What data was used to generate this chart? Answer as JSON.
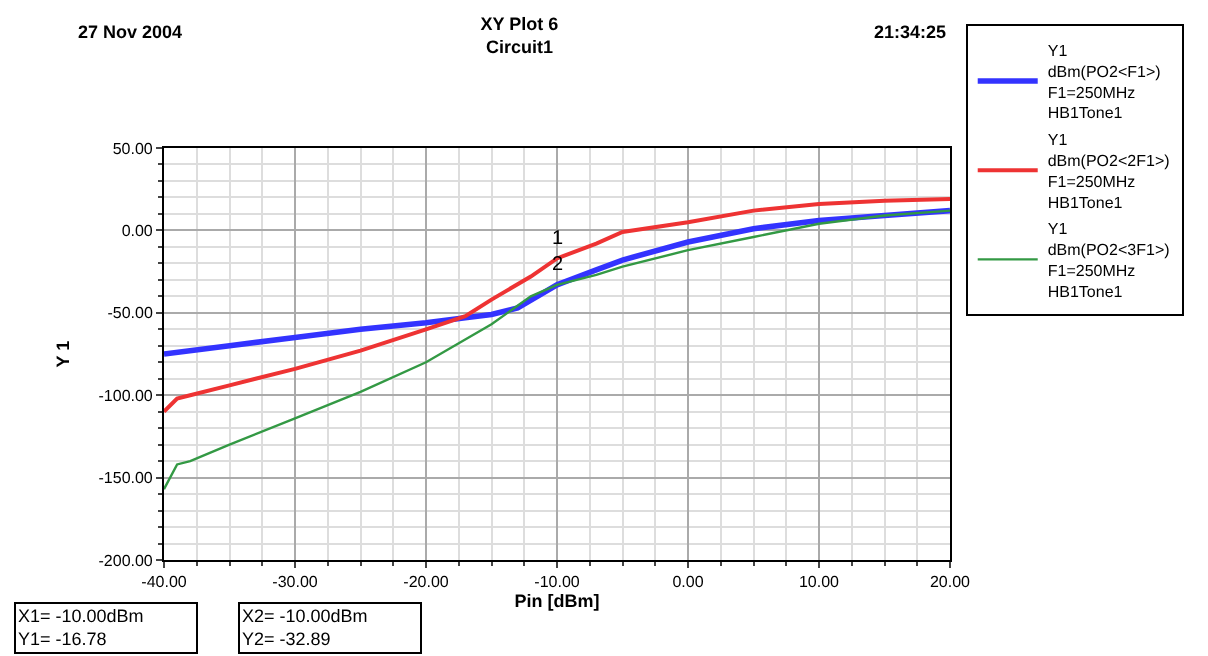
{
  "chart_data": {
    "type": "line",
    "title": "XY Plot 6",
    "subtitle": "Circuit1",
    "xlabel": "Pin [dBm]",
    "ylabel": "Y 1",
    "annotations": [
      "27 Nov 2004",
      "21:34:25",
      {
        "text": "1",
        "x": -10,
        "y": -16.78
      },
      {
        "text": "2",
        "x": -10,
        "y": -32.89
      },
      "X1= -10.00dBm\nY1= -16.78",
      "X2= -10.00dBm\nY2= -32.89"
    ],
    "series": [
      {
        "name": "Y1\ndBm(PO2<F1>)\nF1=250MHz\nHB1Tone1",
        "color": "#3333ff",
        "x": [
          -40,
          -35,
          -30,
          -25,
          -20,
          -17,
          -15,
          -13,
          -10,
          -7,
          -5,
          0,
          5,
          10,
          15,
          20
        ],
        "values": [
          -75,
          -70,
          -65,
          -60,
          -56,
          -53,
          -51,
          -47,
          -33,
          -24,
          -18,
          -7,
          1,
          6,
          9,
          12
        ]
      },
      {
        "name": "Y1\ndBm(PO2<2F1>)\nF1=250MHz\nHB1Tone1",
        "color": "#ee3333",
        "x": [
          -40,
          -39,
          -38,
          -35,
          -30,
          -25,
          -20,
          -17,
          -15,
          -12,
          -10,
          -7,
          -5,
          0,
          5,
          10,
          15,
          20
        ],
        "values": [
          -110,
          -102,
          -100,
          -94,
          -84,
          -73,
          -60,
          -52,
          -42,
          -28,
          -17,
          -8,
          -1,
          5,
          12,
          16,
          18,
          19
        ]
      },
      {
        "name": "Y1\ndBm(PO2<3F1>)\nF1=250MHz\nHB1Tone1",
        "color": "#339944",
        "x": [
          -40,
          -39,
          -38,
          -35,
          -30,
          -25,
          -20,
          -15,
          -12,
          -10,
          -7,
          -5,
          0,
          5,
          10,
          15,
          20
        ],
        "values": [
          -157,
          -142,
          -140,
          -130,
          -114,
          -98,
          -80,
          -57,
          -40,
          -33,
          -27,
          -22,
          -12,
          -4,
          4,
          9,
          12
        ]
      }
    ],
    "xlim": [
      -40,
      20
    ],
    "ylim": [
      -200,
      50
    ],
    "xticks": [
      {
        "value": -40,
        "label": "-40.00"
      },
      {
        "value": -30,
        "label": "-30.00"
      },
      {
        "value": -20,
        "label": "-20.00"
      },
      {
        "value": -10,
        "label": "-10.00"
      },
      {
        "value": 0,
        "label": "0.00"
      },
      {
        "value": 10,
        "label": "10.00"
      },
      {
        "value": 20,
        "label": "20.00"
      }
    ],
    "yticks": [
      {
        "value": -200,
        "label": "-200.00"
      },
      {
        "value": -150,
        "label": "-150.00"
      },
      {
        "value": -100,
        "label": "-100.00"
      },
      {
        "value": -50,
        "label": "-50.00"
      },
      {
        "value": 0,
        "label": "0.00"
      },
      {
        "value": 50,
        "label": "50.00"
      }
    ],
    "grid": true,
    "legend": "right",
    "line_style": "solid"
  }
}
